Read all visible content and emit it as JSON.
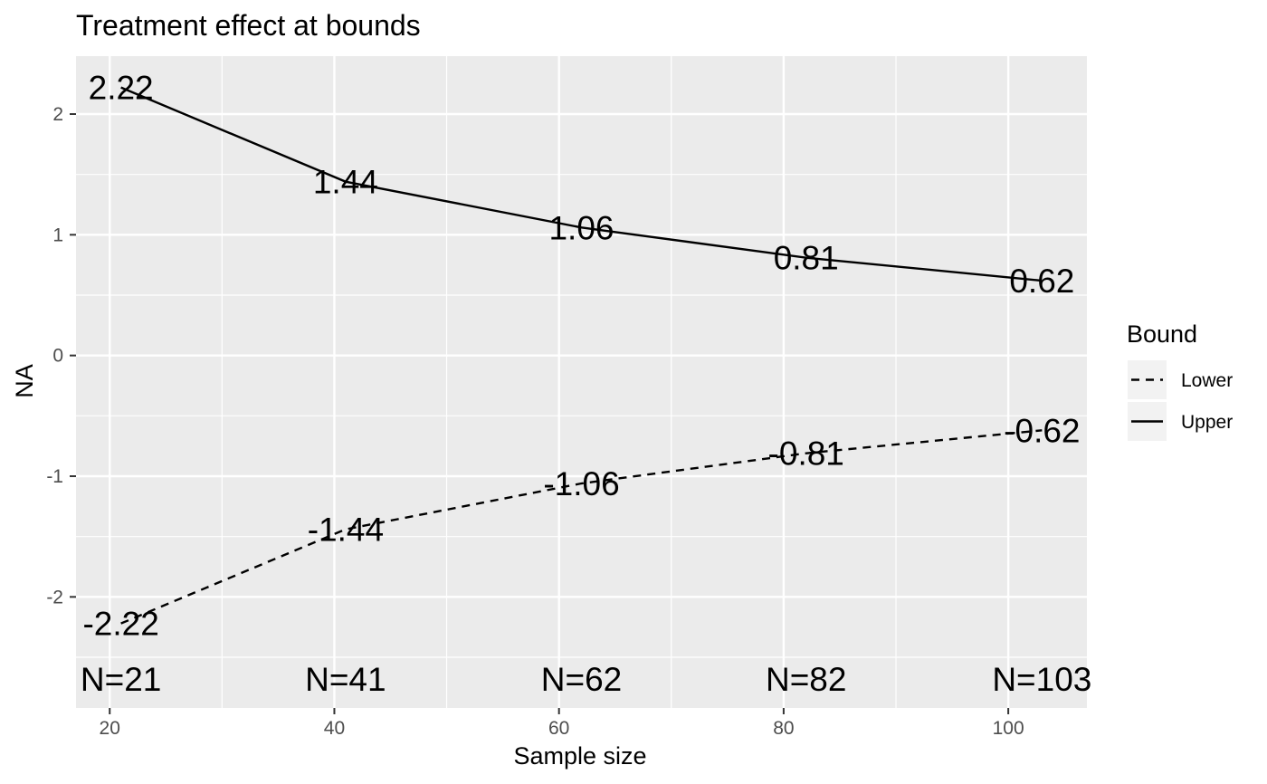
{
  "chart_data": {
    "type": "line",
    "title": "Treatment effect at bounds",
    "xlabel": "Sample size",
    "ylabel": "NA",
    "x": [
      21,
      41,
      62,
      82,
      103
    ],
    "series": [
      {
        "name": "Upper",
        "values": [
          2.22,
          1.44,
          1.06,
          0.81,
          0.62
        ],
        "labels": [
          "2.22",
          "1.44",
          "1.06",
          "0.81",
          "0.62"
        ],
        "line_style": "solid"
      },
      {
        "name": "Lower",
        "values": [
          -2.22,
          -1.44,
          -1.06,
          -0.81,
          -0.62
        ],
        "labels": [
          "-2.22",
          "-1.44",
          "-1.06",
          "-0.81",
          "-0.62"
        ],
        "line_style": "dashed"
      }
    ],
    "n_labels": [
      "N=21",
      "N=41",
      "N=62",
      "N=82",
      "N=103"
    ],
    "xlim": [
      17,
      107
    ],
    "ylim": [
      -2.92,
      2.48
    ],
    "xticks": [
      20,
      40,
      60,
      80,
      100
    ],
    "xtick_labels": [
      "20",
      "40",
      "60",
      "80",
      "100"
    ],
    "yticks": [
      -2,
      -1,
      0,
      1,
      2
    ],
    "ytick_labels": [
      "-2",
      "-1",
      "0",
      "1",
      "2"
    ],
    "grid": true,
    "legend": {
      "title": "Bound",
      "position": "right",
      "entries": [
        {
          "label": "Lower",
          "line_style": "dashed"
        },
        {
          "label": "Upper",
          "line_style": "solid"
        }
      ]
    },
    "colors": {
      "panel": "#ebebeb",
      "grid": "#ffffff",
      "line": "#000000",
      "tick_text": "#4d4d4d"
    }
  }
}
